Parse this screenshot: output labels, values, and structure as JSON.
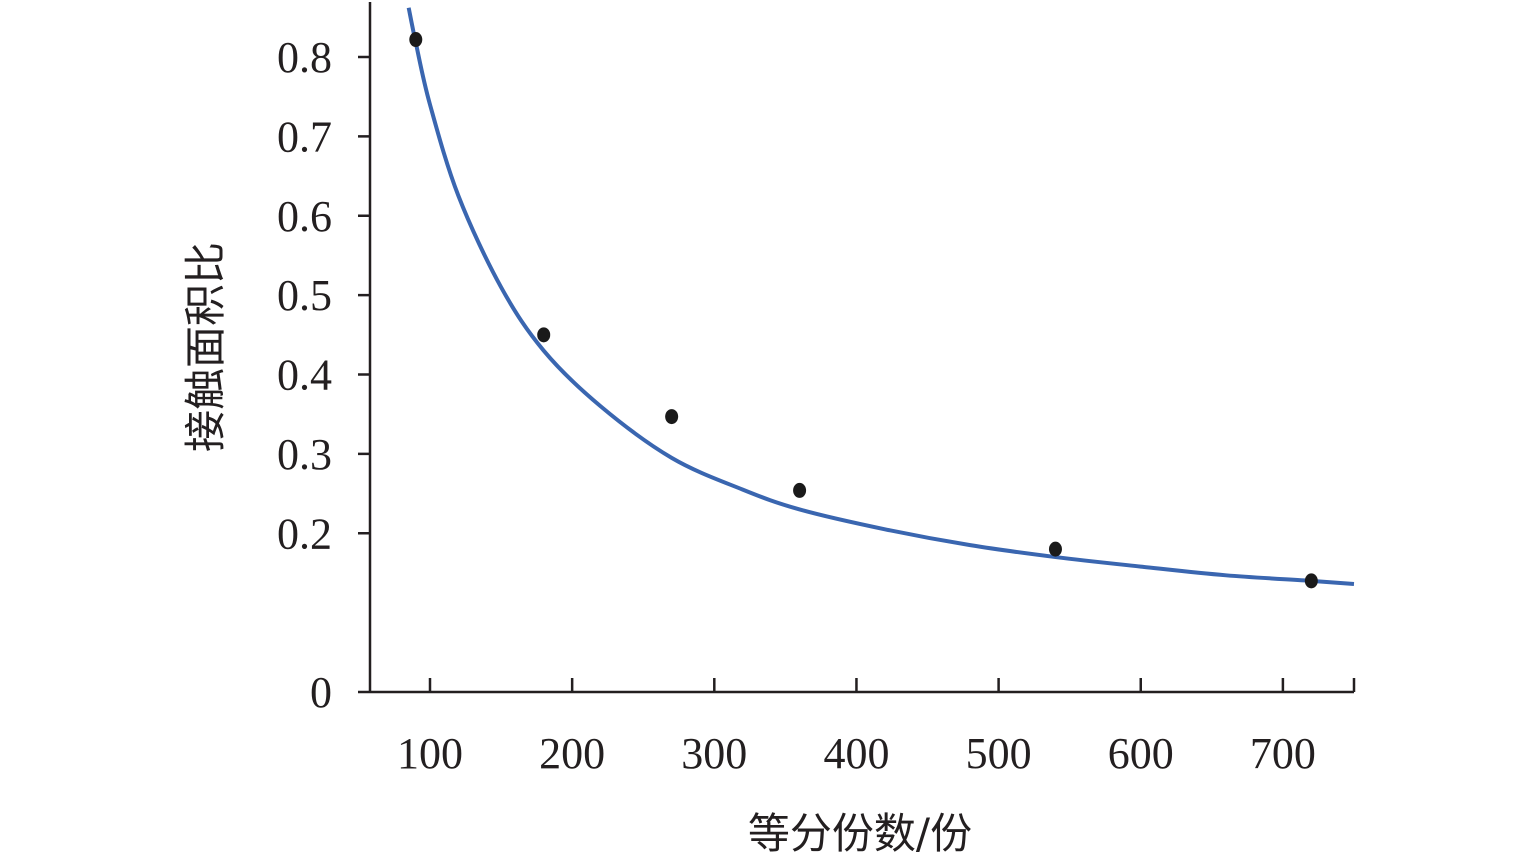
{
  "chart_data": {
    "type": "scatter",
    "xlabel": "等分份数/份",
    "ylabel": "接触面积比",
    "xlim": [
      60,
      750
    ],
    "ylim": [
      0,
      0.86
    ],
    "x_ticks": [
      100,
      200,
      300,
      400,
      500,
      600,
      700
    ],
    "y_ticks": [
      0,
      0.2,
      0.3,
      0.4,
      0.5,
      0.6,
      0.7,
      0.8
    ],
    "y_tick_labels": [
      "0",
      "0.2",
      "0.3",
      "0.4",
      "0.5",
      "0.6",
      "0.7",
      "0.8"
    ],
    "grid": false,
    "series": [
      {
        "type": "scatter",
        "color": "#1a1a1a",
        "x": [
          90,
          180,
          270,
          360,
          540,
          720
        ],
        "y": [
          0.822,
          0.45,
          0.347,
          0.254,
          0.18,
          0.14
        ]
      },
      {
        "type": "line",
        "color": "#3a66b0",
        "x": [
          85,
          90,
          100,
          120,
          150,
          180,
          220,
          270,
          320,
          360,
          420,
          480,
          540,
          600,
          660,
          720,
          750
        ],
        "y": [
          0.862,
          0.818,
          0.74,
          0.625,
          0.51,
          0.43,
          0.36,
          0.295,
          0.255,
          0.23,
          0.205,
          0.185,
          0.17,
          0.158,
          0.147,
          0.14,
          0.136
        ]
      }
    ]
  }
}
